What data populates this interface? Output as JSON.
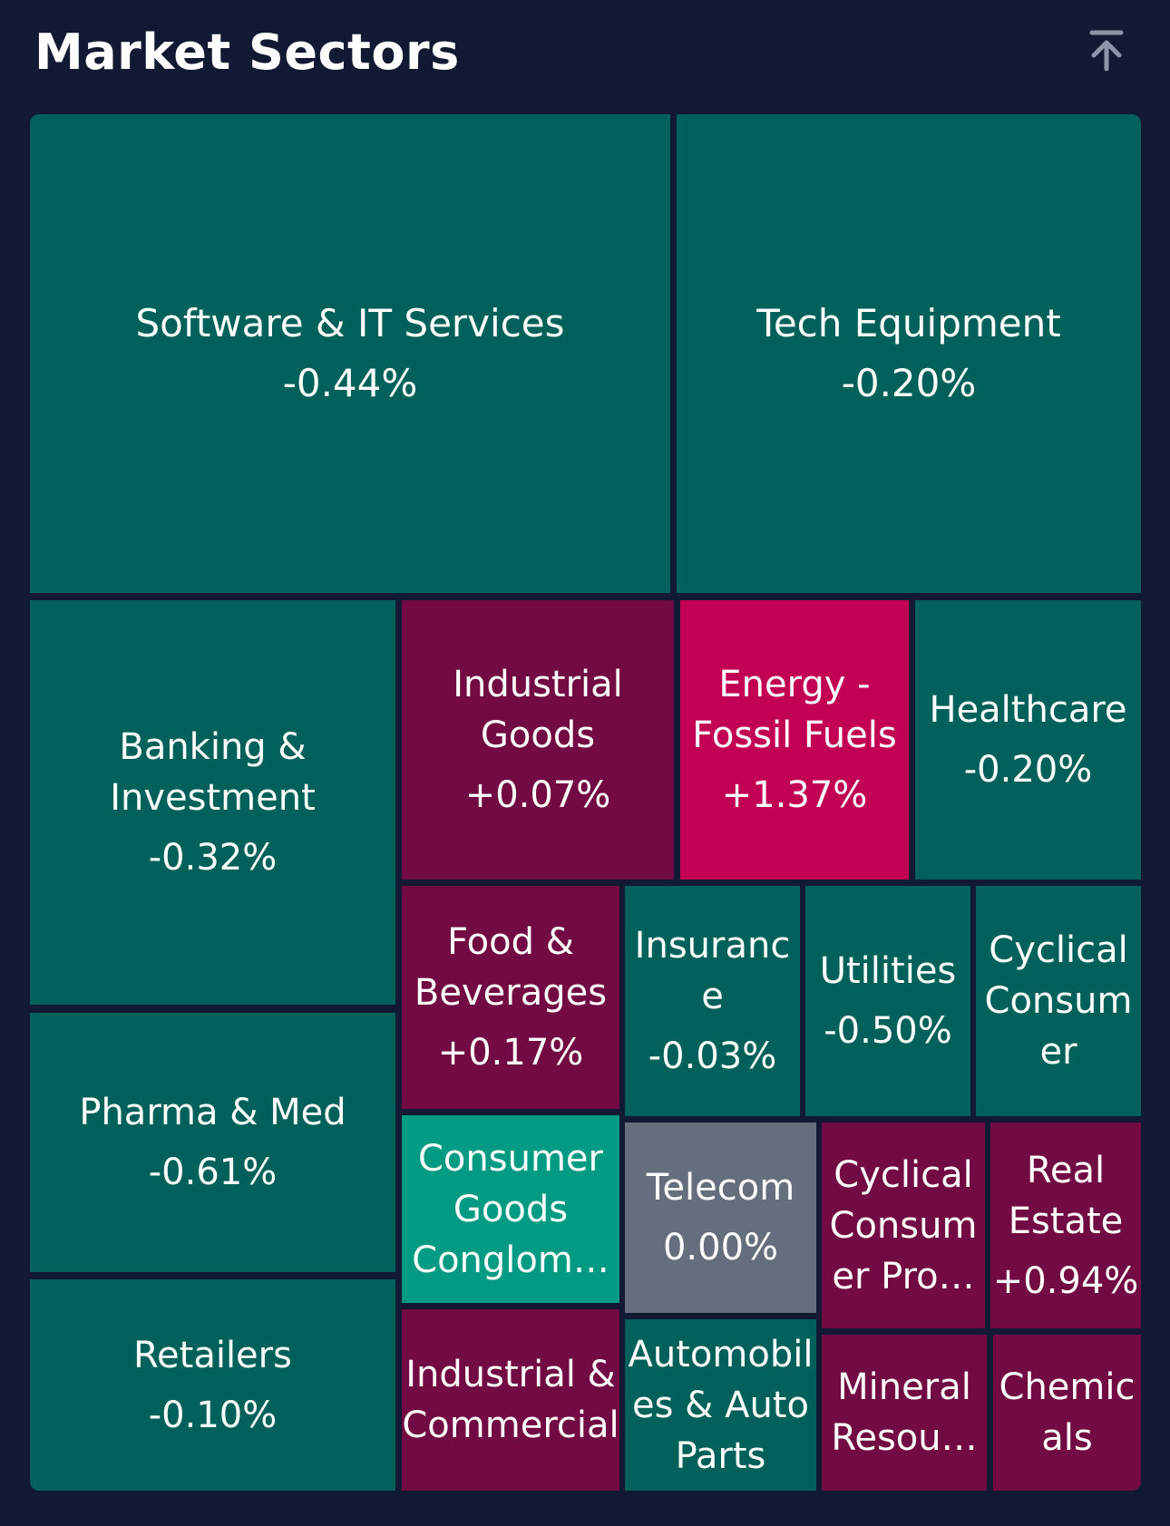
{
  "header": {
    "title": "Market Sectors",
    "collapse_icon": "arrow-up-to-line-icon"
  },
  "colors": {
    "background": "#121a33",
    "negative": "#00615a",
    "slight_positive": "#720b43",
    "strong_positive": "#c20054",
    "strong_negative": "#009b82",
    "neutral": "#656e7d"
  },
  "sectors": [
    {
      "name": "Software & IT Services",
      "change": "-0.44%"
    },
    {
      "name": "Tech Equipment",
      "change": "-0.20%"
    },
    {
      "name": "Banking &\nInvestment",
      "change": "-0.32%"
    },
    {
      "name": "Industrial\nGoods",
      "change": "+0.07%"
    },
    {
      "name": "Energy -\nFossil Fuels",
      "change": "+1.37%"
    },
    {
      "name": "Healthcare",
      "change": "-0.20%"
    },
    {
      "name": "Pharma & Med",
      "change": "-0.61%"
    },
    {
      "name": "Food &\nBeverages",
      "change": "+0.17%"
    },
    {
      "name": "Insuranc\ne",
      "change": "-0.03%"
    },
    {
      "name": "Utilities",
      "change": "-0.50%"
    },
    {
      "name": "Cyclical\nConsum\ner",
      "change": ""
    },
    {
      "name": "Retailers",
      "change": "-0.10%"
    },
    {
      "name": "Consumer\nGoods\nConglom…",
      "change": ""
    },
    {
      "name": "Telecom",
      "change": "0.00%"
    },
    {
      "name": "Cyclical\nConsum\ner Pro…",
      "change": ""
    },
    {
      "name": "Real\nEstate",
      "change": "+0.94%"
    },
    {
      "name": "Industrial &\nCommercial",
      "change": ""
    },
    {
      "name": "Automobil\nes & Auto\nParts",
      "change": ""
    },
    {
      "name": "Mineral\nResou…",
      "change": ""
    },
    {
      "name": "Chemic\nals",
      "change": ""
    }
  ]
}
